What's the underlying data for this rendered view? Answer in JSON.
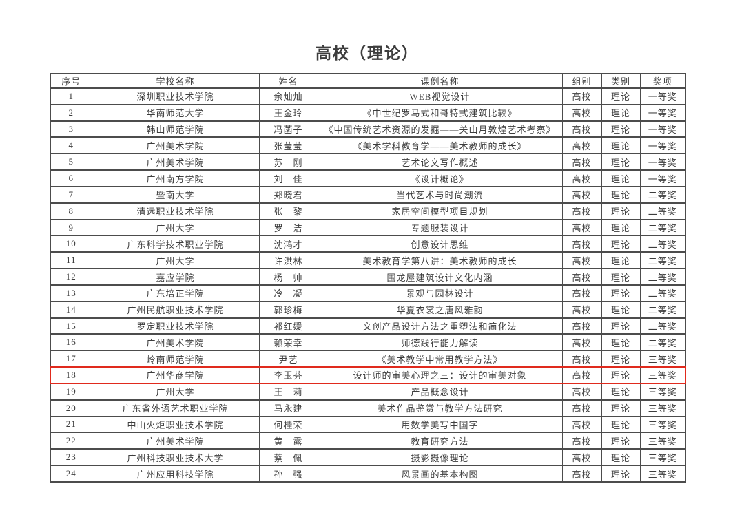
{
  "title": "高校（理论）",
  "colors": {
    "highlight": "#e02a1d",
    "border": "#4c4c4c",
    "text": "#3d3d3d"
  },
  "table": {
    "headers": [
      "序号",
      "学校名称",
      "姓名",
      "课例名称",
      "组别",
      "类别",
      "奖项"
    ],
    "highlighted_row_index": 17,
    "rows": [
      [
        "1",
        "深圳职业技术学院",
        "余灿灿",
        "WEB视觉设计",
        "高校",
        "理论",
        "一等奖"
      ],
      [
        "2",
        "华南师范大学",
        "王金玲",
        "《中世纪罗马式和哥特式建筑比较》",
        "高校",
        "理论",
        "一等奖"
      ],
      [
        "3",
        "韩山师范学院",
        "冯菡子",
        "《中国传统艺术资源的发掘——关山月敦煌艺术考察》",
        "高校",
        "理论",
        "一等奖"
      ],
      [
        "4",
        "广州美术学院",
        "张莹莹",
        "《美术学科教育学——美术教师的成长》",
        "高校",
        "理论",
        "一等奖"
      ],
      [
        "5",
        "广州美术学院",
        "苏　刚",
        "艺术论文写作概述",
        "高校",
        "理论",
        "一等奖"
      ],
      [
        "6",
        "广州南方学院",
        "刘　佳",
        "《设计概论》",
        "高校",
        "理论",
        "一等奖"
      ],
      [
        "7",
        "暨南大学",
        "郑晓君",
        "当代艺术与时尚潮流",
        "高校",
        "理论",
        "二等奖"
      ],
      [
        "8",
        "清远职业技术学院",
        "张　黎",
        "家居空间模型项目规划",
        "高校",
        "理论",
        "二等奖"
      ],
      [
        "9",
        "广州大学",
        "罗　洁",
        "专题服装设计",
        "高校",
        "理论",
        "二等奖"
      ],
      [
        "10",
        "广东科学技术职业学院",
        "沈鸿才",
        "创意设计思维",
        "高校",
        "理论",
        "二等奖"
      ],
      [
        "11",
        "广州大学",
        "许洪林",
        "美术教育学第八讲：美术教师的成长",
        "高校",
        "理论",
        "二等奖"
      ],
      [
        "12",
        "嘉应学院",
        "杨　帅",
        "围龙屋建筑设计文化内涵",
        "高校",
        "理论",
        "二等奖"
      ],
      [
        "13",
        "广东培正学院",
        "冷　凝",
        "景观与园林设计",
        "高校",
        "理论",
        "二等奖"
      ],
      [
        "14",
        "广州民航职业技术学院",
        "郭珍梅",
        "华夏衣裳之唐风雅韵",
        "高校",
        "理论",
        "二等奖"
      ],
      [
        "15",
        "罗定职业技术学院",
        "祁红媛",
        "文创产品设计方法之重塑法和简化法",
        "高校",
        "理论",
        "二等奖"
      ],
      [
        "16",
        "广州美术学院",
        "赖荣幸",
        "师德践行能力解读",
        "高校",
        "理论",
        "二等奖"
      ],
      [
        "17",
        "岭南师范学院",
        "尹艺",
        "《美术教学中常用教学方法》",
        "高校",
        "理论",
        "三等奖"
      ],
      [
        "18",
        "广州华商学院",
        "李玉芬",
        "设计师的审美心理之三：设计的审美对象",
        "高校",
        "理论",
        "三等奖"
      ],
      [
        "19",
        "广州大学",
        "王　莉",
        "产品概念设计",
        "高校",
        "理论",
        "三等奖"
      ],
      [
        "20",
        "广东省外语艺术职业学院",
        "马永建",
        "美术作品鉴赏与教学方法研究",
        "高校",
        "理论",
        "三等奖"
      ],
      [
        "21",
        "中山火炬职业技术学院",
        "何桂荣",
        "用数学美写中国字",
        "高校",
        "理论",
        "三等奖"
      ],
      [
        "22",
        "广州美术学院",
        "黄　露",
        "教育研究方法",
        "高校",
        "理论",
        "三等奖"
      ],
      [
        "23",
        "广州科技职业技术大学",
        "蔡　佩",
        "摄影摄像理论",
        "高校",
        "理论",
        "三等奖"
      ],
      [
        "24",
        "广州应用科技学院",
        "孙　强",
        "风景画的基本构图",
        "高校",
        "理论",
        "三等奖"
      ]
    ]
  }
}
